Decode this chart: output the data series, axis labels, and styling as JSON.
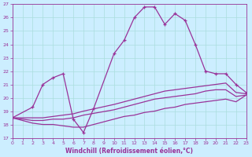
{
  "xlabel": "Windchill (Refroidissement éolien,°C)",
  "ylabel": "",
  "bg_color": "#cceeff",
  "line_color": "#993399",
  "grid_color": "#aadddd",
  "xmin": 0,
  "xmax": 23,
  "ymin": 17,
  "ymax": 27,
  "series": [
    {
      "x": [
        0,
        2,
        3,
        4,
        5,
        6,
        7,
        8,
        10,
        11,
        12,
        13,
        14,
        15,
        16,
        17,
        18,
        19,
        20,
        21,
        22,
        23
      ],
      "y": [
        18.5,
        19.3,
        21.0,
        21.5,
        21.8,
        18.4,
        17.4,
        19.2,
        23.3,
        24.3,
        26.0,
        26.8,
        26.8,
        25.5,
        26.3,
        25.8,
        24.0,
        22.0,
        21.8,
        21.8,
        21.0,
        20.4
      ],
      "marker": true
    },
    {
      "x": [
        0,
        2,
        3,
        4,
        5,
        6,
        7,
        10,
        11,
        12,
        13,
        14,
        15,
        16,
        17,
        18,
        19,
        20,
        21,
        22,
        23
      ],
      "y": [
        18.5,
        18.5,
        18.5,
        18.6,
        18.7,
        18.8,
        19.0,
        19.5,
        19.7,
        19.9,
        20.1,
        20.3,
        20.5,
        20.6,
        20.7,
        20.8,
        20.9,
        21.0,
        21.1,
        20.4,
        20.3
      ],
      "marker": false
    },
    {
      "x": [
        0,
        2,
        3,
        4,
        5,
        6,
        7,
        10,
        11,
        12,
        13,
        14,
        15,
        16,
        17,
        18,
        19,
        20,
        21,
        22,
        23
      ],
      "y": [
        18.5,
        18.3,
        18.3,
        18.4,
        18.4,
        18.5,
        18.7,
        19.1,
        19.3,
        19.5,
        19.7,
        19.9,
        20.0,
        20.1,
        20.2,
        20.3,
        20.5,
        20.6,
        20.6,
        20.1,
        20.2
      ],
      "marker": false
    },
    {
      "x": [
        0,
        2,
        3,
        4,
        5,
        6,
        7,
        10,
        11,
        12,
        13,
        14,
        15,
        16,
        17,
        18,
        19,
        20,
        21,
        22,
        23
      ],
      "y": [
        18.5,
        18.1,
        18.0,
        18.0,
        17.9,
        17.8,
        17.8,
        18.4,
        18.6,
        18.7,
        18.9,
        19.0,
        19.2,
        19.3,
        19.5,
        19.6,
        19.7,
        19.8,
        19.9,
        19.7,
        20.2
      ],
      "marker": false
    }
  ]
}
